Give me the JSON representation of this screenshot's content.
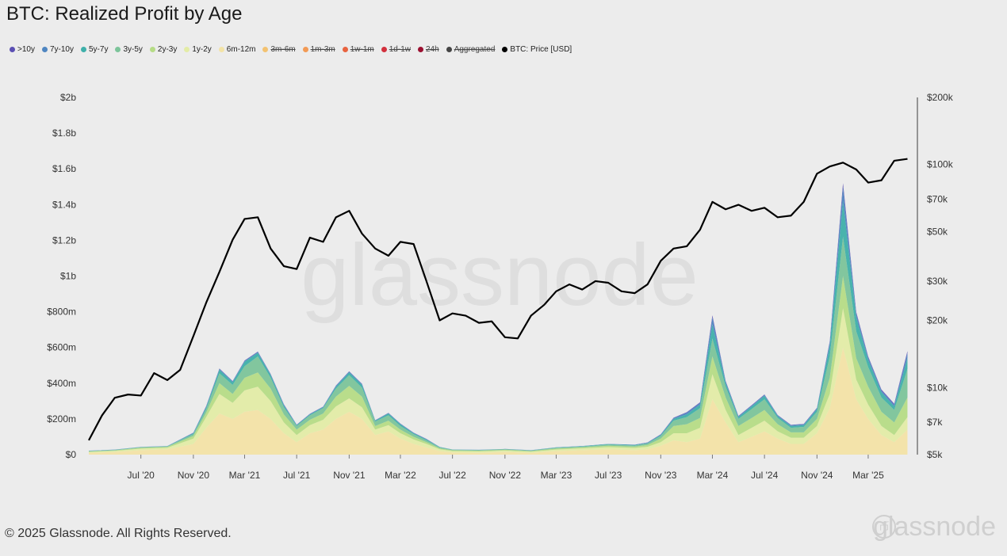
{
  "title": "BTC: Realized Profit by Age",
  "legend": [
    {
      "label": ">10y",
      "color": "#5b4fb3",
      "enabled": true
    },
    {
      "label": "7y-10y",
      "color": "#4f86c1",
      "enabled": true
    },
    {
      "label": "5y-7y",
      "color": "#3fb0aa",
      "enabled": true
    },
    {
      "label": "3y-5y",
      "color": "#7cc49a",
      "enabled": true
    },
    {
      "label": "2y-3y",
      "color": "#b6dc86",
      "enabled": true
    },
    {
      "label": "1y-2y",
      "color": "#e3eca6",
      "enabled": true
    },
    {
      "label": "6m-12m",
      "color": "#f3e3a6",
      "enabled": true
    },
    {
      "label": "3m-6m",
      "color": "#f3c271",
      "enabled": false
    },
    {
      "label": "1m-3m",
      "color": "#f29a55",
      "enabled": false
    },
    {
      "label": "1w-1m",
      "color": "#e8633f",
      "enabled": false
    },
    {
      "label": "1d-1w",
      "color": "#d2303d",
      "enabled": false
    },
    {
      "label": "24h",
      "color": "#9b1030",
      "enabled": false
    },
    {
      "label": "Aggregated",
      "color": "#444444",
      "enabled": false
    },
    {
      "label": "BTC: Price [USD]",
      "color": "#000000",
      "enabled": true
    }
  ],
  "watermark": "glassnode",
  "footer": "© 2025 Glassnode. All Rights Reserved.",
  "corner_brand": "glassnode",
  "corner_badge": "币",
  "chart_data": {
    "type": "area",
    "x_ticks": [
      "Jul '20",
      "Nov '20",
      "Mar '21",
      "Jul '21",
      "Nov '21",
      "Mar '22",
      "Jul '22",
      "Nov '22",
      "Mar '23",
      "Jul '23",
      "Nov '23",
      "Mar '24",
      "Jul '24",
      "Nov '24",
      "Mar '25"
    ],
    "y_left_ticks": [
      "$0",
      "$200m",
      "$400m",
      "$600m",
      "$800m",
      "$1b",
      "$1.2b",
      "$1.4b",
      "$1.6b",
      "$1.8b",
      "$2b"
    ],
    "y_left_range": [
      0,
      2000
    ],
    "y_left_unit": "million USD",
    "y_right_ticks": [
      {
        "label": "$5k",
        "value": 5000
      },
      {
        "label": "$7k",
        "value": 7000
      },
      {
        "label": "$10k",
        "value": 10000
      },
      {
        "label": "$20k",
        "value": 20000
      },
      {
        "label": "$30k",
        "value": 30000
      },
      {
        "label": "$50k",
        "value": 50000
      },
      {
        "label": "$70k",
        "value": 70000
      },
      {
        "label": "$100k",
        "value": 100000
      },
      {
        "label": "$200k",
        "value": 200000
      }
    ],
    "y_right_range": [
      5000,
      200000
    ],
    "y_right_scale": "log",
    "x": [
      "2020-03",
      "2020-05",
      "2020-07",
      "2020-09",
      "2020-11",
      "2020-12",
      "2021-01",
      "2021-02",
      "2021-03",
      "2021-04",
      "2021-05",
      "2021-06",
      "2021-07",
      "2021-08",
      "2021-09",
      "2021-10",
      "2021-11",
      "2021-12",
      "2022-01",
      "2022-02",
      "2022-03",
      "2022-04",
      "2022-05",
      "2022-06",
      "2022-07",
      "2022-09",
      "2022-11",
      "2023-01",
      "2023-03",
      "2023-05",
      "2023-07",
      "2023-09",
      "2023-10",
      "2023-11",
      "2023-12",
      "2024-01",
      "2024-02",
      "2024-03",
      "2024-04",
      "2024-05",
      "2024-06",
      "2024-07",
      "2024-08",
      "2024-09",
      "2024-10",
      "2024-11",
      "2024-12",
      "2025-01",
      "2025-02",
      "2025-03",
      "2025-04",
      "2025-05",
      "2025-06"
    ],
    "series": [
      {
        "name": "6m-12m",
        "color": "#f3e3a6",
        "values": [
          10,
          15,
          25,
          30,
          60,
          150,
          230,
          200,
          240,
          250,
          200,
          120,
          70,
          120,
          140,
          200,
          240,
          200,
          110,
          130,
          90,
          60,
          40,
          20,
          12,
          10,
          15,
          10,
          20,
          25,
          30,
          25,
          30,
          50,
          80,
          70,
          90,
          310,
          180,
          70,
          100,
          130,
          90,
          60,
          60,
          120,
          260,
          600,
          310,
          200,
          110,
          70,
          140
        ]
      },
      {
        "name": "1y-2y",
        "color": "#e3eca6",
        "values": [
          5,
          6,
          8,
          8,
          30,
          60,
          110,
          90,
          120,
          130,
          100,
          60,
          40,
          45,
          55,
          70,
          75,
          65,
          30,
          35,
          30,
          25,
          20,
          10,
          8,
          8,
          8,
          6,
          8,
          10,
          12,
          12,
          14,
          20,
          40,
          50,
          60,
          140,
          70,
          40,
          50,
          60,
          40,
          35,
          35,
          40,
          80,
          220,
          110,
          80,
          50,
          40,
          70
        ]
      },
      {
        "name": "2y-3y",
        "color": "#b6dc86",
        "values": [
          3,
          3,
          5,
          5,
          15,
          25,
          60,
          50,
          70,
          80,
          70,
          45,
          30,
          30,
          35,
          55,
          70,
          60,
          20,
          25,
          20,
          15,
          10,
          5,
          4,
          4,
          4,
          4,
          6,
          6,
          8,
          8,
          10,
          20,
          40,
          50,
          55,
          100,
          70,
          50,
          55,
          60,
          40,
          30,
          30,
          40,
          90,
          180,
          120,
          100,
          80,
          70,
          110
        ]
      },
      {
        "name": "3y-5y",
        "color": "#7cc49a",
        "values": [
          2,
          2,
          3,
          3,
          10,
          20,
          55,
          50,
          65,
          90,
          60,
          40,
          20,
          25,
          30,
          45,
          60,
          50,
          25,
          30,
          20,
          15,
          10,
          5,
          3,
          3,
          3,
          3,
          4,
          4,
          6,
          6,
          8,
          15,
          30,
          40,
          55,
          100,
          60,
          40,
          50,
          60,
          35,
          25,
          30,
          40,
          120,
          220,
          150,
          110,
          80,
          70,
          160
        ]
      },
      {
        "name": "5y-7y",
        "color": "#3fb0aa",
        "values": [
          1,
          1,
          1,
          1,
          5,
          10,
          20,
          15,
          25,
          20,
          15,
          10,
          5,
          5,
          5,
          10,
          15,
          15,
          5,
          10,
          10,
          5,
          5,
          2,
          1,
          1,
          1,
          1,
          2,
          2,
          3,
          3,
          3,
          5,
          10,
          15,
          20,
          80,
          20,
          10,
          15,
          20,
          10,
          10,
          10,
          15,
          60,
          200,
          80,
          40,
          30,
          20,
          60
        ]
      },
      {
        "name": "7y-10y",
        "color": "#4f86c1",
        "values": [
          1,
          1,
          1,
          1,
          2,
          5,
          5,
          5,
          5,
          5,
          5,
          5,
          2,
          3,
          3,
          5,
          5,
          5,
          2,
          3,
          3,
          2,
          2,
          1,
          1,
          1,
          1,
          1,
          1,
          1,
          1,
          2,
          2,
          3,
          5,
          10,
          10,
          40,
          10,
          5,
          5,
          5,
          5,
          5,
          5,
          5,
          20,
          80,
          20,
          15,
          10,
          10,
          30
        ]
      },
      {
        "name": ">10y",
        "color": "#5b4fb3",
        "values": [
          0,
          0,
          0,
          0,
          1,
          2,
          2,
          2,
          2,
          2,
          2,
          2,
          1,
          1,
          1,
          2,
          2,
          2,
          1,
          1,
          1,
          1,
          1,
          0,
          0,
          0,
          0,
          0,
          0,
          0,
          0,
          0,
          1,
          1,
          2,
          3,
          3,
          10,
          3,
          2,
          2,
          2,
          2,
          2,
          2,
          2,
          5,
          20,
          8,
          5,
          5,
          5,
          10
        ]
      }
    ],
    "price_series": {
      "name": "BTC: Price [USD]",
      "color": "#000000",
      "x": [
        "2020-03",
        "2020-04",
        "2020-05",
        "2020-06",
        "2020-07",
        "2020-08",
        "2020-09",
        "2020-10",
        "2020-11",
        "2020-12",
        "2021-01",
        "2021-02",
        "2021-03",
        "2021-04",
        "2021-05",
        "2021-06",
        "2021-07",
        "2021-08",
        "2021-09",
        "2021-10",
        "2021-11",
        "2021-12",
        "2022-01",
        "2022-02",
        "2022-03",
        "2022-04",
        "2022-05",
        "2022-06",
        "2022-07",
        "2022-08",
        "2022-09",
        "2022-10",
        "2022-11",
        "2022-12",
        "2023-01",
        "2023-02",
        "2023-03",
        "2023-04",
        "2023-05",
        "2023-06",
        "2023-07",
        "2023-08",
        "2023-09",
        "2023-10",
        "2023-11",
        "2023-12",
        "2024-01",
        "2024-02",
        "2024-03",
        "2024-04",
        "2024-05",
        "2024-06",
        "2024-07",
        "2024-08",
        "2024-09",
        "2024-10",
        "2024-11",
        "2024-12",
        "2025-01",
        "2025-02",
        "2025-03",
        "2025-04",
        "2025-05",
        "2025-06"
      ],
      "values": [
        5800,
        7500,
        9000,
        9300,
        9200,
        11600,
        10800,
        12000,
        17000,
        24000,
        33000,
        46000,
        57000,
        58000,
        42000,
        35000,
        34000,
        47000,
        45000,
        58000,
        62000,
        49000,
        42000,
        39000,
        45000,
        44000,
        30000,
        20000,
        21500,
        21000,
        19500,
        19800,
        16800,
        16600,
        21000,
        23500,
        27000,
        29000,
        27500,
        30000,
        29500,
        27000,
        26500,
        29000,
        37000,
        42000,
        43000,
        51000,
        68000,
        63000,
        66000,
        62000,
        64000,
        58000,
        59000,
        68000,
        91000,
        98000,
        102000,
        95000,
        83000,
        85000,
        104000,
        106000
      ]
    }
  }
}
